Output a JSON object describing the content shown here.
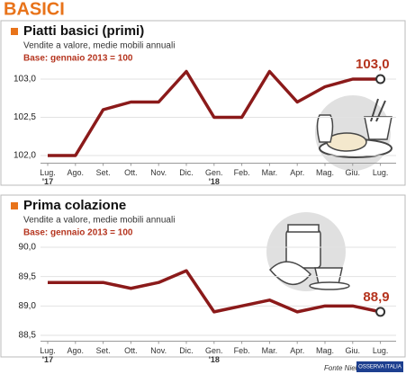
{
  "header": {
    "title": "BASICI"
  },
  "chart_data": [
    {
      "type": "line",
      "title": "Piatti basici (primi)",
      "subtitle": "Vendite a valore, medie mobili annuali",
      "note": "Base: gennaio 2013 = 100",
      "categories": [
        "Lug.",
        "Ago.",
        "Set.",
        "Ott.",
        "Nov.",
        "Dic.",
        "Gen.",
        "Feb.",
        "Mar.",
        "Apr.",
        "Mag.",
        "Giu.",
        "Lug."
      ],
      "year_labels": [
        "'17",
        null,
        null,
        null,
        null,
        null,
        "'18",
        null,
        null,
        null,
        null,
        null,
        null
      ],
      "values": [
        102.0,
        102.0,
        102.6,
        102.7,
        102.7,
        103.1,
        102.5,
        102.5,
        103.1,
        102.7,
        102.9,
        103.0,
        103.0
      ],
      "value_labels": [
        null,
        null,
        null,
        null,
        null,
        null,
        null,
        null,
        null,
        null,
        null,
        null,
        "103,0"
      ],
      "color": "#8b1a1a",
      "grid": true,
      "ylim": [
        101.9,
        103.2
      ],
      "yticks": [
        {
          "value": 102.0,
          "label": "102,0"
        },
        {
          "value": 102.5,
          "label": "102,5"
        },
        {
          "value": 103.0,
          "label": "103,0"
        }
      ]
    },
    {
      "type": "line",
      "title": "Prima colazione",
      "subtitle": "Vendite a valore, medie mobili annuali",
      "note": "Base: gennaio 2013 = 100",
      "categories": [
        "Lug.",
        "Ago.",
        "Set.",
        "Ott.",
        "Nov.",
        "Dic.",
        "Gen.",
        "Feb.",
        "Mar.",
        "Apr.",
        "Mag.",
        "Giu.",
        "Lug."
      ],
      "year_labels": [
        "'17",
        null,
        null,
        null,
        null,
        null,
        "'18",
        null,
        null,
        null,
        null,
        null,
        null
      ],
      "values": [
        89.4,
        89.4,
        89.4,
        89.3,
        89.4,
        89.6,
        88.9,
        89.0,
        89.1,
        88.9,
        89.0,
        89.0,
        88.9
      ],
      "value_labels": [
        null,
        null,
        null,
        null,
        null,
        null,
        null,
        null,
        null,
        null,
        null,
        null,
        "88,9"
      ],
      "color": "#8b1a1a",
      "grid": true,
      "ylim": [
        88.4,
        90.1
      ],
      "yticks": [
        {
          "value": 88.5,
          "label": "88,5"
        },
        {
          "value": 89.0,
          "label": "89,0"
        },
        {
          "value": 89.5,
          "label": "89,5"
        },
        {
          "value": 90.0,
          "label": "90,0"
        }
      ]
    }
  ],
  "footer": {
    "source": "Fonte Nielsen",
    "logo": "OSSERVA ITALIA"
  }
}
